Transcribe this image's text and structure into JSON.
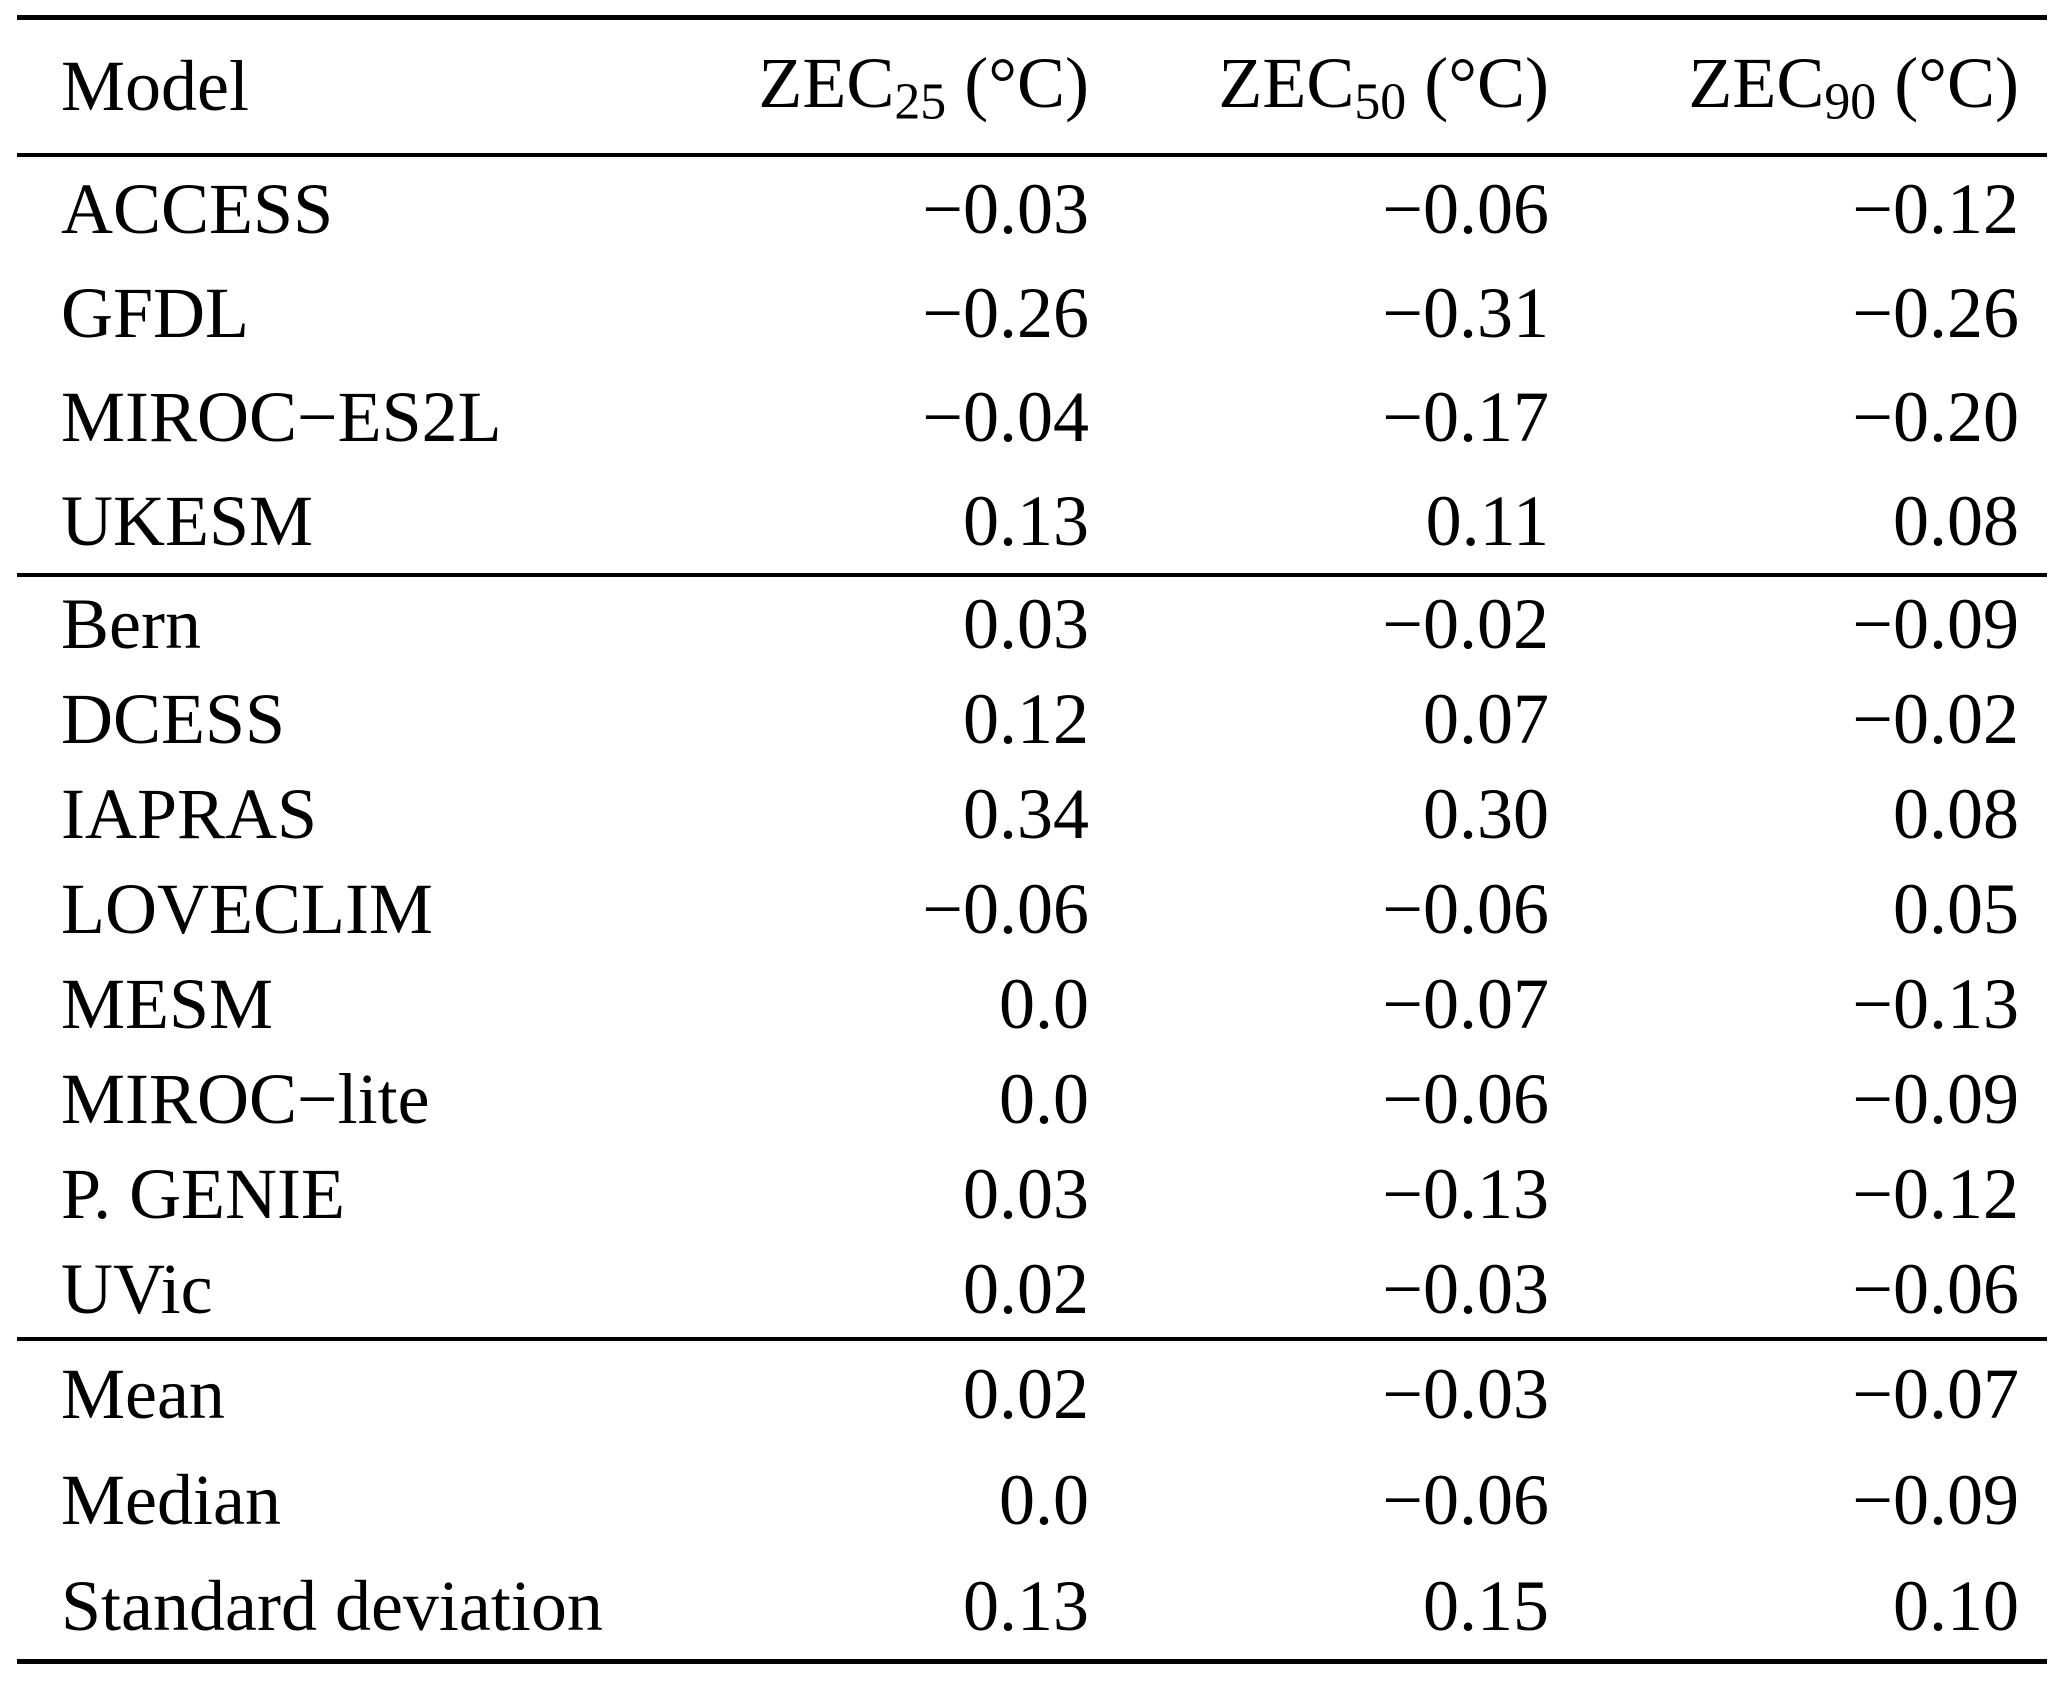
{
  "page": {
    "background_color": "#ffffff",
    "text_color": "#000000",
    "rule_color": "#000000"
  },
  "table": {
    "header": {
      "model_label": "Model",
      "col_zec25": {
        "name": "ZEC",
        "sub": "25",
        "unit": " (°C)"
      },
      "col_zec50": {
        "name": "ZEC",
        "sub": "50",
        "unit": " (°C)"
      },
      "col_zec90": {
        "name": "ZEC",
        "sub": "90",
        "unit": " (°C)"
      }
    },
    "groups": [
      {
        "rows": [
          {
            "model": "ACCESS",
            "zec25": "−0.03",
            "zec50": "−0.06",
            "zec90": "−0.12"
          },
          {
            "model": "GFDL",
            "zec25": "−0.26",
            "zec50": "−0.31",
            "zec90": "−0.26"
          },
          {
            "model": "MIROC−ES2L",
            "zec25": "−0.04",
            "zec50": "−0.17",
            "zec90": "−0.20"
          },
          {
            "model": "UKESM",
            "zec25": "0.13",
            "zec50": "0.11",
            "zec90": "0.08"
          }
        ]
      },
      {
        "rows": [
          {
            "model": "Bern",
            "zec25": "0.03",
            "zec50": "−0.02",
            "zec90": "−0.09"
          },
          {
            "model": "DCESS",
            "zec25": "0.12",
            "zec50": "0.07",
            "zec90": "−0.02"
          },
          {
            "model": "IAPRAS",
            "zec25": "0.34",
            "zec50": "0.30",
            "zec90": "0.08"
          },
          {
            "model": "LOVECLIM",
            "zec25": "−0.06",
            "zec50": "−0.06",
            "zec90": "0.05"
          },
          {
            "model": "MESM",
            "zec25": "0.0",
            "zec50": "−0.07",
            "zec90": "−0.13"
          },
          {
            "model": "MIROC−lite",
            "zec25": "0.0",
            "zec50": "−0.06",
            "zec90": "−0.09"
          },
          {
            "model": "P. GENIE",
            "zec25": "0.03",
            "zec50": "−0.13",
            "zec90": "−0.12"
          },
          {
            "model": "UVic",
            "zec25": "0.02",
            "zec50": "−0.03",
            "zec90": "−0.06"
          }
        ]
      },
      {
        "rows": [
          {
            "model": "Mean",
            "zec25": "0.02",
            "zec50": "−0.03",
            "zec90": "−0.07"
          },
          {
            "model": "Median",
            "zec25": "0.0",
            "zec50": "−0.06",
            "zec90": "−0.09"
          },
          {
            "model": "Standard deviation",
            "zec25": "0.13",
            "zec50": "0.15",
            "zec90": "0.10"
          }
        ]
      }
    ]
  }
}
